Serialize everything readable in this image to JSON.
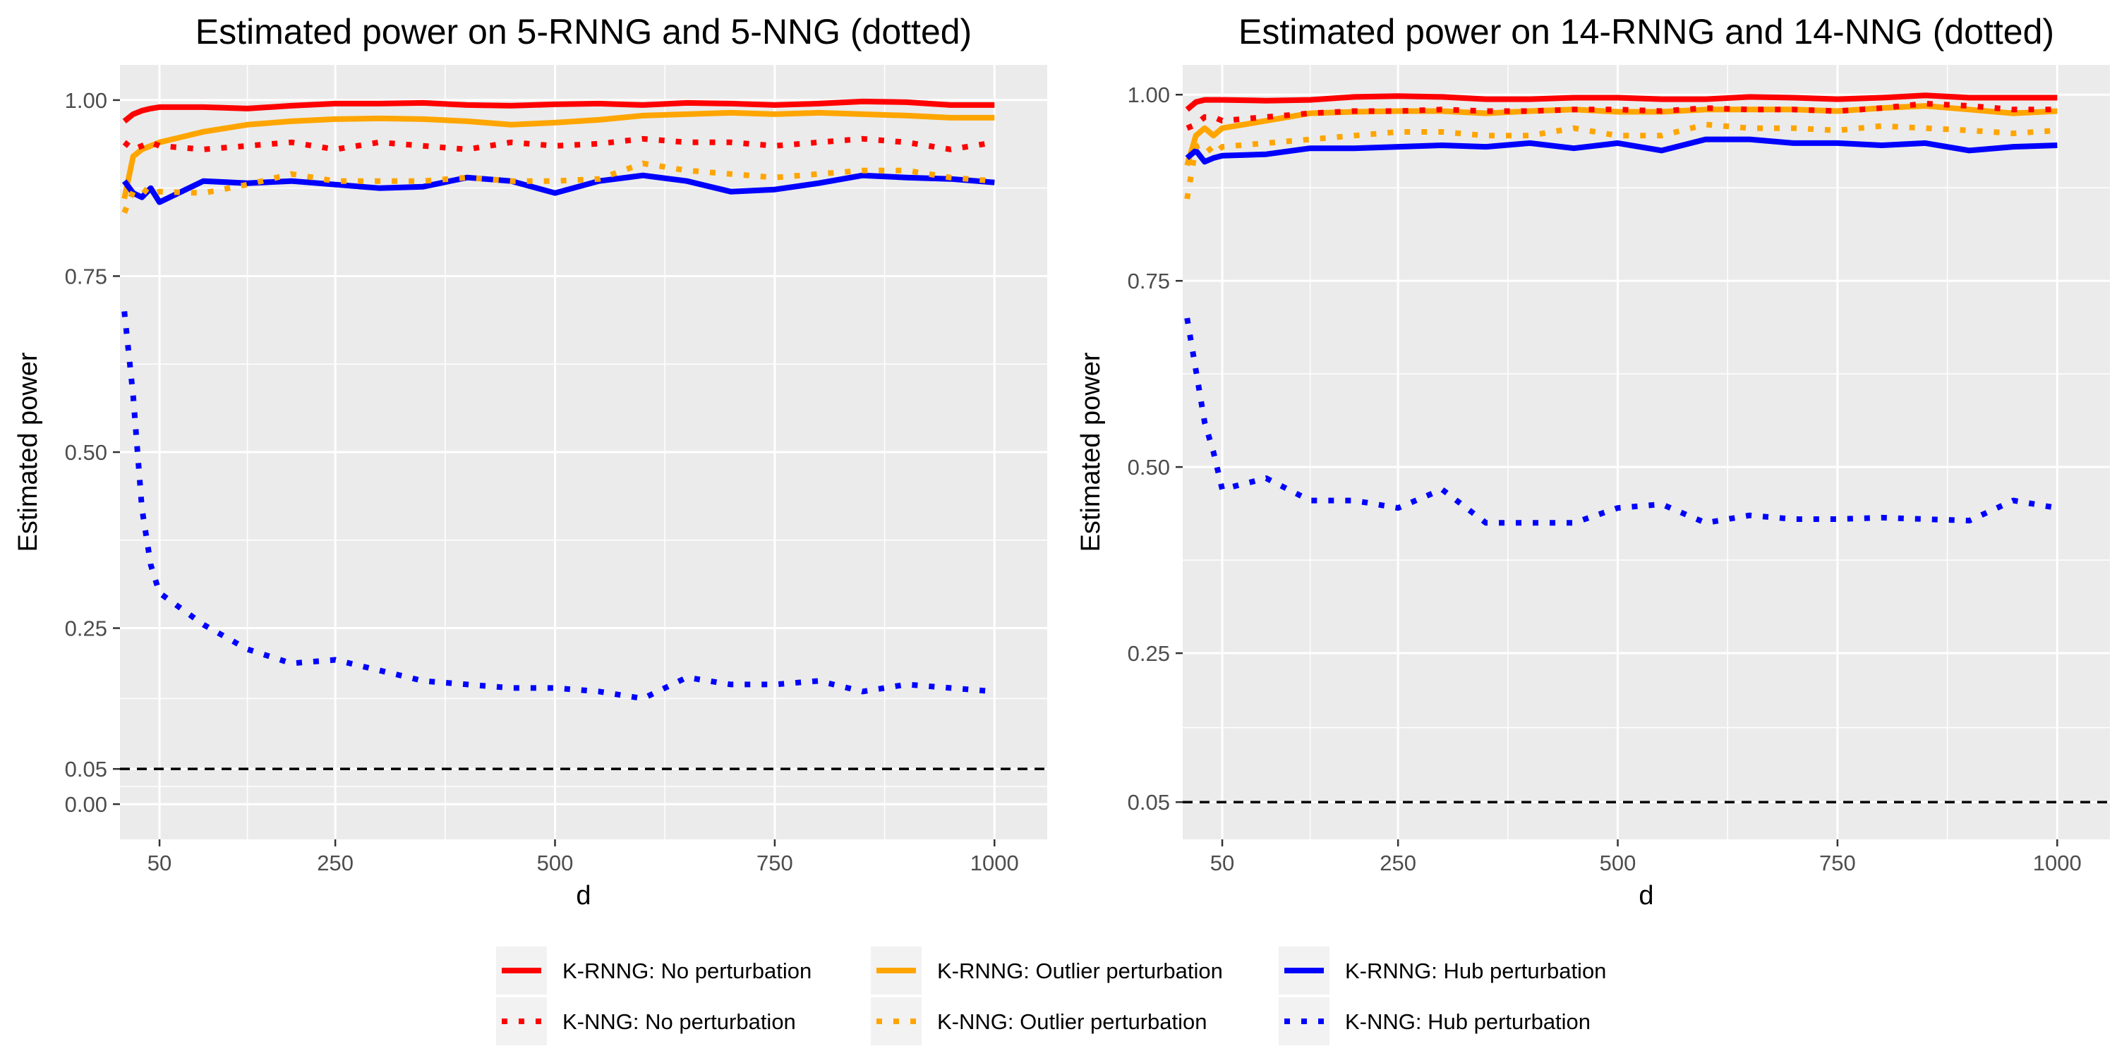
{
  "chart_data": [
    {
      "type": "line",
      "title": "Estimated power on 5-RNNG and 5-NNG (dotted)",
      "xlabel": "d",
      "ylabel": "Estimated power",
      "xlim": [
        5,
        1060
      ],
      "ylim": [
        -0.05,
        1.05
      ],
      "x_ticks": [
        50,
        250,
        500,
        750,
        1000
      ],
      "y_ticks": [
        "0.00",
        "0.05",
        "0.25",
        "0.50",
        "0.75",
        "1.00"
      ],
      "reference_line": {
        "y": 0.05,
        "style": "dashed",
        "color": "#000000"
      },
      "x": [
        10,
        20,
        30,
        40,
        50,
        100,
        150,
        200,
        250,
        300,
        350,
        400,
        450,
        500,
        550,
        600,
        650,
        700,
        750,
        800,
        850,
        900,
        950,
        1000
      ],
      "series": [
        {
          "name": "K-RNNG: No perturbation",
          "style": "solid",
          "color": "#ff0000",
          "values": [
            0.97,
            0.98,
            0.985,
            0.988,
            0.99,
            0.99,
            0.988,
            0.992,
            0.995,
            0.995,
            0.996,
            0.993,
            0.992,
            0.994,
            0.995,
            0.993,
            0.996,
            0.995,
            0.993,
            0.995,
            0.998,
            0.997,
            0.993,
            0.993
          ]
        },
        {
          "name": "K-RNNG: Outlier perturbation",
          "style": "solid",
          "color": "#ffa500",
          "values": [
            0.86,
            0.92,
            0.93,
            0.935,
            0.94,
            0.955,
            0.965,
            0.97,
            0.973,
            0.974,
            0.973,
            0.97,
            0.965,
            0.968,
            0.972,
            0.978,
            0.98,
            0.982,
            0.98,
            0.982,
            0.98,
            0.978,
            0.975,
            0.975
          ]
        },
        {
          "name": "K-RNNG: Hub perturbation",
          "style": "solid",
          "color": "#0000ff",
          "values": [
            0.885,
            0.868,
            0.862,
            0.875,
            0.855,
            0.885,
            0.882,
            0.885,
            0.88,
            0.875,
            0.877,
            0.89,
            0.885,
            0.868,
            0.885,
            0.893,
            0.885,
            0.87,
            0.873,
            0.882,
            0.893,
            0.89,
            0.888,
            0.883
          ]
        },
        {
          "name": "K-NNG: No perturbation",
          "style": "dotted",
          "color": "#ff0000",
          "values": [
            0.94,
            0.93,
            0.935,
            0.94,
            0.935,
            0.93,
            0.935,
            0.94,
            0.93,
            0.94,
            0.935,
            0.93,
            0.94,
            0.935,
            0.938,
            0.945,
            0.94,
            0.94,
            0.935,
            0.94,
            0.945,
            0.94,
            0.93,
            0.94
          ]
        },
        {
          "name": "K-NNG: Outlier perturbation",
          "style": "dotted",
          "color": "#ffa500",
          "values": [
            0.84,
            0.87,
            0.875,
            0.865,
            0.87,
            0.868,
            0.88,
            0.895,
            0.885,
            0.885,
            0.885,
            0.89,
            0.885,
            0.885,
            0.888,
            0.91,
            0.9,
            0.895,
            0.89,
            0.895,
            0.9,
            0.9,
            0.89,
            0.885
          ]
        },
        {
          "name": "K-NNG: Hub perturbation",
          "style": "dotted",
          "color": "#0000ff",
          "values": [
            0.7,
            0.58,
            0.42,
            0.34,
            0.3,
            0.255,
            0.22,
            0.2,
            0.205,
            0.19,
            0.175,
            0.17,
            0.165,
            0.165,
            0.16,
            0.15,
            0.18,
            0.17,
            0.17,
            0.175,
            0.16,
            0.17,
            0.165,
            0.16
          ]
        }
      ]
    },
    {
      "type": "line",
      "title": "Estimated power on 14-RNNG and 14-NNG (dotted)",
      "xlabel": "d",
      "ylabel": "Estimated power",
      "xlim": [
        5,
        1060
      ],
      "ylim": [
        0.0,
        1.04
      ],
      "x_ticks": [
        50,
        250,
        500,
        750,
        1000
      ],
      "y_ticks": [
        "0.05",
        "0.25",
        "0.50",
        "0.75",
        "1.00"
      ],
      "reference_line": {
        "y": 0.05,
        "style": "dashed",
        "color": "#000000"
      },
      "x": [
        10,
        20,
        30,
        40,
        50,
        100,
        150,
        200,
        250,
        300,
        350,
        400,
        450,
        500,
        550,
        600,
        650,
        700,
        750,
        800,
        850,
        900,
        950,
        1000
      ],
      "series": [
        {
          "name": "K-RNNG: No perturbation",
          "style": "solid",
          "color": "#ff0000",
          "values": [
            0.98,
            0.99,
            0.993,
            0.993,
            0.993,
            0.992,
            0.993,
            0.997,
            0.998,
            0.997,
            0.994,
            0.994,
            0.996,
            0.996,
            0.994,
            0.994,
            0.997,
            0.996,
            0.994,
            0.996,
            0.999,
            0.996,
            0.996,
            0.996
          ]
        },
        {
          "name": "K-RNNG: Outlier perturbation",
          "style": "solid",
          "color": "#ffa500",
          "values": [
            0.905,
            0.945,
            0.955,
            0.945,
            0.955,
            0.965,
            0.975,
            0.977,
            0.978,
            0.978,
            0.975,
            0.978,
            0.98,
            0.977,
            0.977,
            0.98,
            0.98,
            0.98,
            0.978,
            0.982,
            0.985,
            0.98,
            0.975,
            0.978
          ]
        },
        {
          "name": "K-RNNG: Hub perturbation",
          "style": "solid",
          "color": "#0000ff",
          "values": [
            0.915,
            0.925,
            0.91,
            0.915,
            0.918,
            0.92,
            0.928,
            0.928,
            0.93,
            0.932,
            0.93,
            0.935,
            0.928,
            0.935,
            0.925,
            0.94,
            0.94,
            0.935,
            0.935,
            0.932,
            0.935,
            0.925,
            0.93,
            0.932
          ]
        },
        {
          "name": "K-NNG: No perturbation",
          "style": "dotted",
          "color": "#ff0000",
          "values": [
            0.955,
            0.96,
            0.97,
            0.97,
            0.965,
            0.97,
            0.975,
            0.978,
            0.978,
            0.98,
            0.978,
            0.978,
            0.98,
            0.98,
            0.978,
            0.982,
            0.98,
            0.98,
            0.978,
            0.982,
            0.988,
            0.985,
            0.98,
            0.98
          ]
        },
        {
          "name": "K-NNG: Outlier perturbation",
          "style": "dotted",
          "color": "#ffa500",
          "values": [
            0.86,
            0.93,
            0.935,
            0.92,
            0.93,
            0.935,
            0.94,
            0.945,
            0.95,
            0.95,
            0.945,
            0.945,
            0.955,
            0.945,
            0.945,
            0.96,
            0.955,
            0.955,
            0.952,
            0.958,
            0.955,
            0.952,
            0.948,
            0.952
          ]
        },
        {
          "name": "K-NNG: Hub perturbation",
          "style": "dotted",
          "color": "#0000ff",
          "values": [
            0.7,
            0.63,
            0.56,
            0.52,
            0.47,
            0.485,
            0.455,
            0.455,
            0.445,
            0.47,
            0.425,
            0.425,
            0.425,
            0.445,
            0.45,
            0.425,
            0.435,
            0.43,
            0.43,
            0.432,
            0.43,
            0.428,
            0.455,
            0.445
          ]
        }
      ]
    }
  ],
  "legend": {
    "position": "bottom",
    "items": [
      {
        "label": "K-RNNG: No perturbation",
        "color": "#ff0000",
        "style": "solid"
      },
      {
        "label": "K-RNNG: Outlier perturbation",
        "color": "#ffa500",
        "style": "solid"
      },
      {
        "label": "K-RNNG: Hub perturbation",
        "color": "#0000ff",
        "style": "solid"
      },
      {
        "label": "K-NNG: No perturbation",
        "color": "#ff0000",
        "style": "dotted"
      },
      {
        "label": "K-NNG: Outlier perturbation",
        "color": "#ffa500",
        "style": "dotted"
      },
      {
        "label": "K-NNG: Hub perturbation",
        "color": "#0000ff",
        "style": "dotted"
      }
    ]
  },
  "colors": {
    "panel_bg": "#ebebeb",
    "grid": "#ffffff",
    "page_bg": "#ffffff"
  }
}
